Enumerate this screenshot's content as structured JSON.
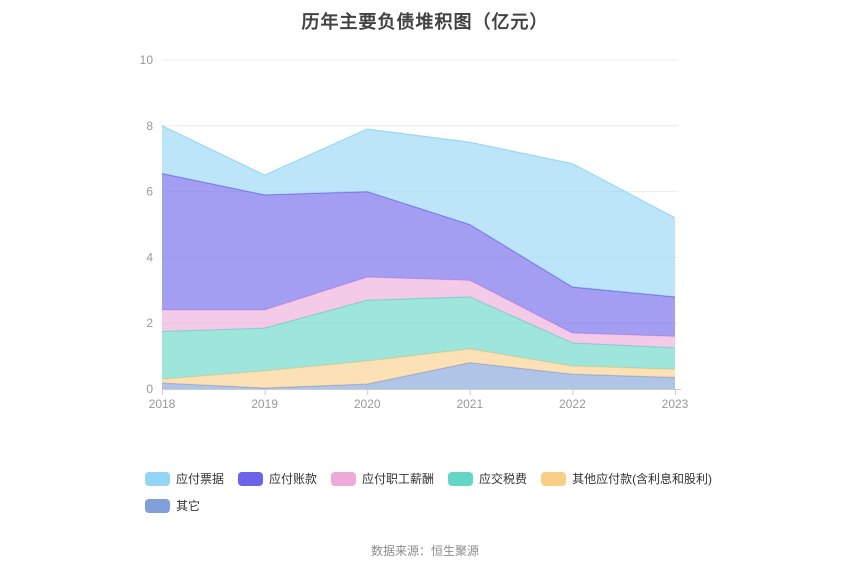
{
  "page": {
    "title": "历年主要负债堆积图（亿元）",
    "footer": "数据来源：恒生聚源"
  },
  "colors": {
    "title_text": "#424242",
    "axis_label_text": "#999999",
    "axis_line": "#cccccc",
    "gridline": "#ececec",
    "legend_text": "#333333",
    "footer_text": "#8c8c8c",
    "background": "#ffffff"
  },
  "chart_data": {
    "type": "area",
    "stacked": true,
    "title": "历年主要负债堆积图（亿元）",
    "xlabel": "",
    "ylabel": "",
    "x": [
      "2018",
      "2019",
      "2020",
      "2021",
      "2022",
      "2023"
    ],
    "ylim": [
      0,
      10
    ],
    "yticks": [
      0,
      2,
      4,
      6,
      8,
      10
    ],
    "grid": true,
    "legend_position": "bottom",
    "area_fill_opacity": 0.62,
    "stacking_note": "series listed in legend order; stacked bottom-to-top in reverse of this order (其它 at bottom, 应付票据 on top)",
    "series": [
      {
        "name": "应付票据",
        "color": "#93d5f5",
        "values": [
          1.45,
          0.6,
          1.9,
          2.5,
          3.75,
          2.4
        ]
      },
      {
        "name": "应付账款",
        "color": "#6b63e8",
        "values": [
          4.15,
          3.5,
          2.6,
          1.7,
          1.4,
          1.2
        ]
      },
      {
        "name": "应付职工薪酬",
        "color": "#eeaadb",
        "values": [
          0.65,
          0.55,
          0.7,
          0.5,
          0.3,
          0.35
        ]
      },
      {
        "name": "应交税费",
        "color": "#63d6c7",
        "values": [
          1.45,
          1.3,
          1.85,
          1.58,
          0.7,
          0.65
        ]
      },
      {
        "name": "其他应付款(含利息和股利)",
        "color": "#f9cf88",
        "values": [
          0.12,
          0.52,
          0.7,
          0.42,
          0.25,
          0.25
        ]
      },
      {
        "name": "其它",
        "color": "#7fa0d8",
        "values": [
          0.18,
          0.03,
          0.15,
          0.8,
          0.45,
          0.35
        ]
      }
    ],
    "cumulative_totals": [
      8.0,
      6.5,
      7.9,
      7.5,
      6.85,
      5.2
    ]
  }
}
